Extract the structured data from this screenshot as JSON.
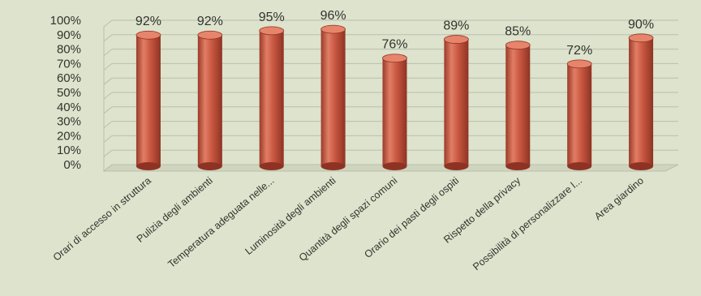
{
  "chart_data": {
    "type": "bar",
    "style": "3d-cylinder",
    "categories": [
      "Orari di accesso in struttura",
      "Pulizia degli ambienti",
      "Temperatura adeguata nelle...",
      "Luminosità degli ambienti",
      "Quantità degli spazi comuni",
      "Orario dei pasti degli ospiti",
      "Rispetto della privacy",
      "Possibilità di personalizzare l...",
      "Area giardino"
    ],
    "values": [
      92,
      92,
      95,
      96,
      76,
      89,
      85,
      72,
      90
    ],
    "value_labels": [
      "92%",
      "92%",
      "95%",
      "96%",
      "76%",
      "89%",
      "85%",
      "72%",
      "90%"
    ],
    "y_ticks": [
      "0%",
      "10%",
      "20%",
      "30%",
      "40%",
      "50%",
      "60%",
      "70%",
      "80%",
      "90%",
      "100%"
    ],
    "ylim": [
      0,
      100
    ],
    "grid": true,
    "legend": "none",
    "colors": {
      "bar": "#c8553f",
      "bar_dark": "#8e3324",
      "bar_light": "#e6846c",
      "background": "#dde3cc",
      "grid": "#b9bfae",
      "text": "#33332e"
    }
  }
}
